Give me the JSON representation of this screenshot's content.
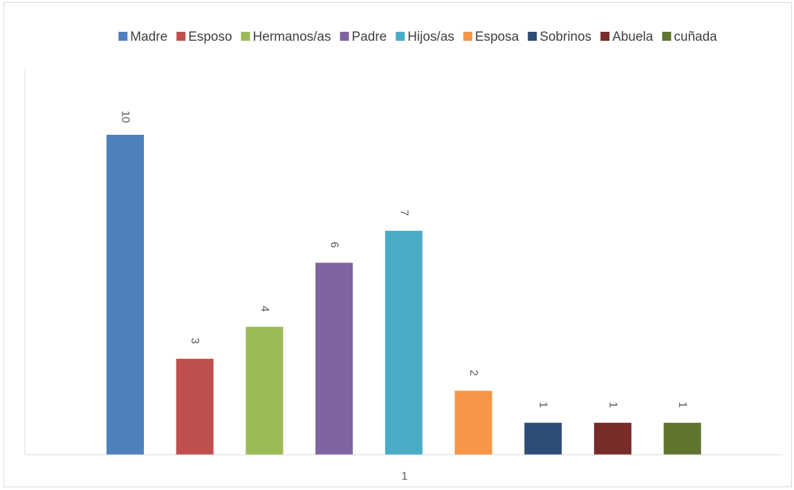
{
  "chart_data": {
    "type": "bar",
    "categories": [
      "1"
    ],
    "series": [
      {
        "name": "Madre",
        "values": [
          10
        ],
        "color": "#4F81BD"
      },
      {
        "name": "Esposo",
        "values": [
          3
        ],
        "color": "#C0504D"
      },
      {
        "name": "Hermanos/as",
        "values": [
          4
        ],
        "color": "#9BBB59"
      },
      {
        "name": "Padre",
        "values": [
          6
        ],
        "color": "#8064A2"
      },
      {
        "name": "Hijos/as",
        "values": [
          7
        ],
        "color": "#4BACC6"
      },
      {
        "name": "Esposa",
        "values": [
          2
        ],
        "color": "#F79646"
      },
      {
        "name": "Sobrinos",
        "values": [
          1
        ],
        "color": "#2C4D75"
      },
      {
        "name": "Abuela",
        "values": [
          1
        ],
        "color": "#772C2A"
      },
      {
        "name": "cuñada",
        "values": [
          1
        ],
        "color": "#5F7530"
      }
    ],
    "ylim": [
      0,
      10
    ],
    "grid": false,
    "legend_position": "top",
    "data_labels": true,
    "data_label_rotation": "vertical"
  },
  "colors": {
    "axis_line": "#d9d9d9",
    "frame_border": "#d9d9d9"
  }
}
